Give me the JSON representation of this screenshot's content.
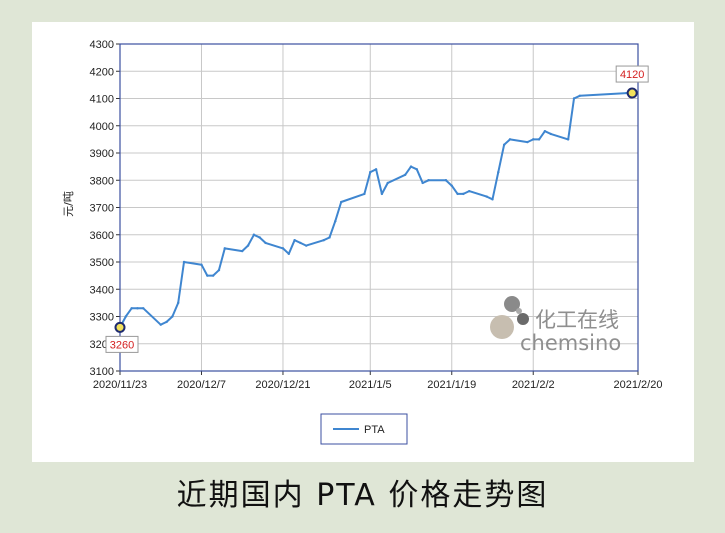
{
  "caption": "近期国内 PTA 价格走势图",
  "watermark": {
    "cn": "化工在线",
    "en": "chemsino"
  },
  "colors": {
    "line": "#3f86d0",
    "marker": "#f2e15b",
    "annotation": "#d42020",
    "grid": "#c8c8c8",
    "axis": "#3b4fa0"
  },
  "chart_data": {
    "type": "line",
    "title": "",
    "xlabel": "",
    "ylabel": "元/吨",
    "ylim": [
      3100,
      4300
    ],
    "yticks": [
      3100,
      3200,
      3300,
      3400,
      3500,
      3600,
      3700,
      3800,
      3900,
      4000,
      4100,
      4200,
      4300
    ],
    "xlim": [
      "2020/11/23",
      "2021/2/20"
    ],
    "xticks": [
      "2020/11/23",
      "2020/12/7",
      "2020/12/21",
      "2021/1/5",
      "2021/1/19",
      "2021/2/2",
      "2021/2/20"
    ],
    "grid": true,
    "legend": "bottom-center",
    "series": [
      {
        "name": "PTA",
        "x": [
          "2020/11/23",
          "2020/11/24",
          "2020/11/25",
          "2020/11/26",
          "2020/11/27",
          "2020/11/30",
          "2020/12/1",
          "2020/12/2",
          "2020/12/3",
          "2020/12/4",
          "2020/12/7",
          "2020/12/8",
          "2020/12/9",
          "2020/12/10",
          "2020/12/11",
          "2020/12/14",
          "2020/12/15",
          "2020/12/16",
          "2020/12/17",
          "2020/12/18",
          "2020/12/21",
          "2020/12/22",
          "2020/12/23",
          "2020/12/24",
          "2020/12/25",
          "2020/12/28",
          "2020/12/29",
          "2020/12/30",
          "2020/12/31",
          "2021/1/4",
          "2021/1/5",
          "2021/1/6",
          "2021/1/7",
          "2021/1/8",
          "2021/1/11",
          "2021/1/12",
          "2021/1/13",
          "2021/1/14",
          "2021/1/15",
          "2021/1/18",
          "2021/1/19",
          "2021/1/20",
          "2021/1/21",
          "2021/1/22",
          "2021/1/25",
          "2021/1/26",
          "2021/1/27",
          "2021/1/28",
          "2021/1/29",
          "2021/2/1",
          "2021/2/2",
          "2021/2/3",
          "2021/2/4",
          "2021/2/5",
          "2021/2/8",
          "2021/2/9",
          "2021/2/10",
          "2021/2/18",
          "2021/2/19"
        ],
        "values": [
          3260,
          3300,
          3330,
          3330,
          3330,
          3270,
          3280,
          3300,
          3350,
          3500,
          3490,
          3450,
          3450,
          3470,
          3550,
          3540,
          3560,
          3600,
          3590,
          3570,
          3550,
          3530,
          3580,
          3570,
          3560,
          3580,
          3590,
          3650,
          3720,
          3750,
          3830,
          3840,
          3750,
          3790,
          3820,
          3850,
          3840,
          3790,
          3800,
          3800,
          3780,
          3750,
          3750,
          3760,
          3740,
          3730,
          3830,
          3930,
          3950,
          3940,
          3950,
          3950,
          3980,
          3970,
          3950,
          4100,
          4110,
          4120,
          4120
        ]
      }
    ],
    "annotations": [
      {
        "x": "2020/11/23",
        "label": "3260"
      },
      {
        "x": "2021/2/19",
        "label": "4120"
      }
    ]
  }
}
